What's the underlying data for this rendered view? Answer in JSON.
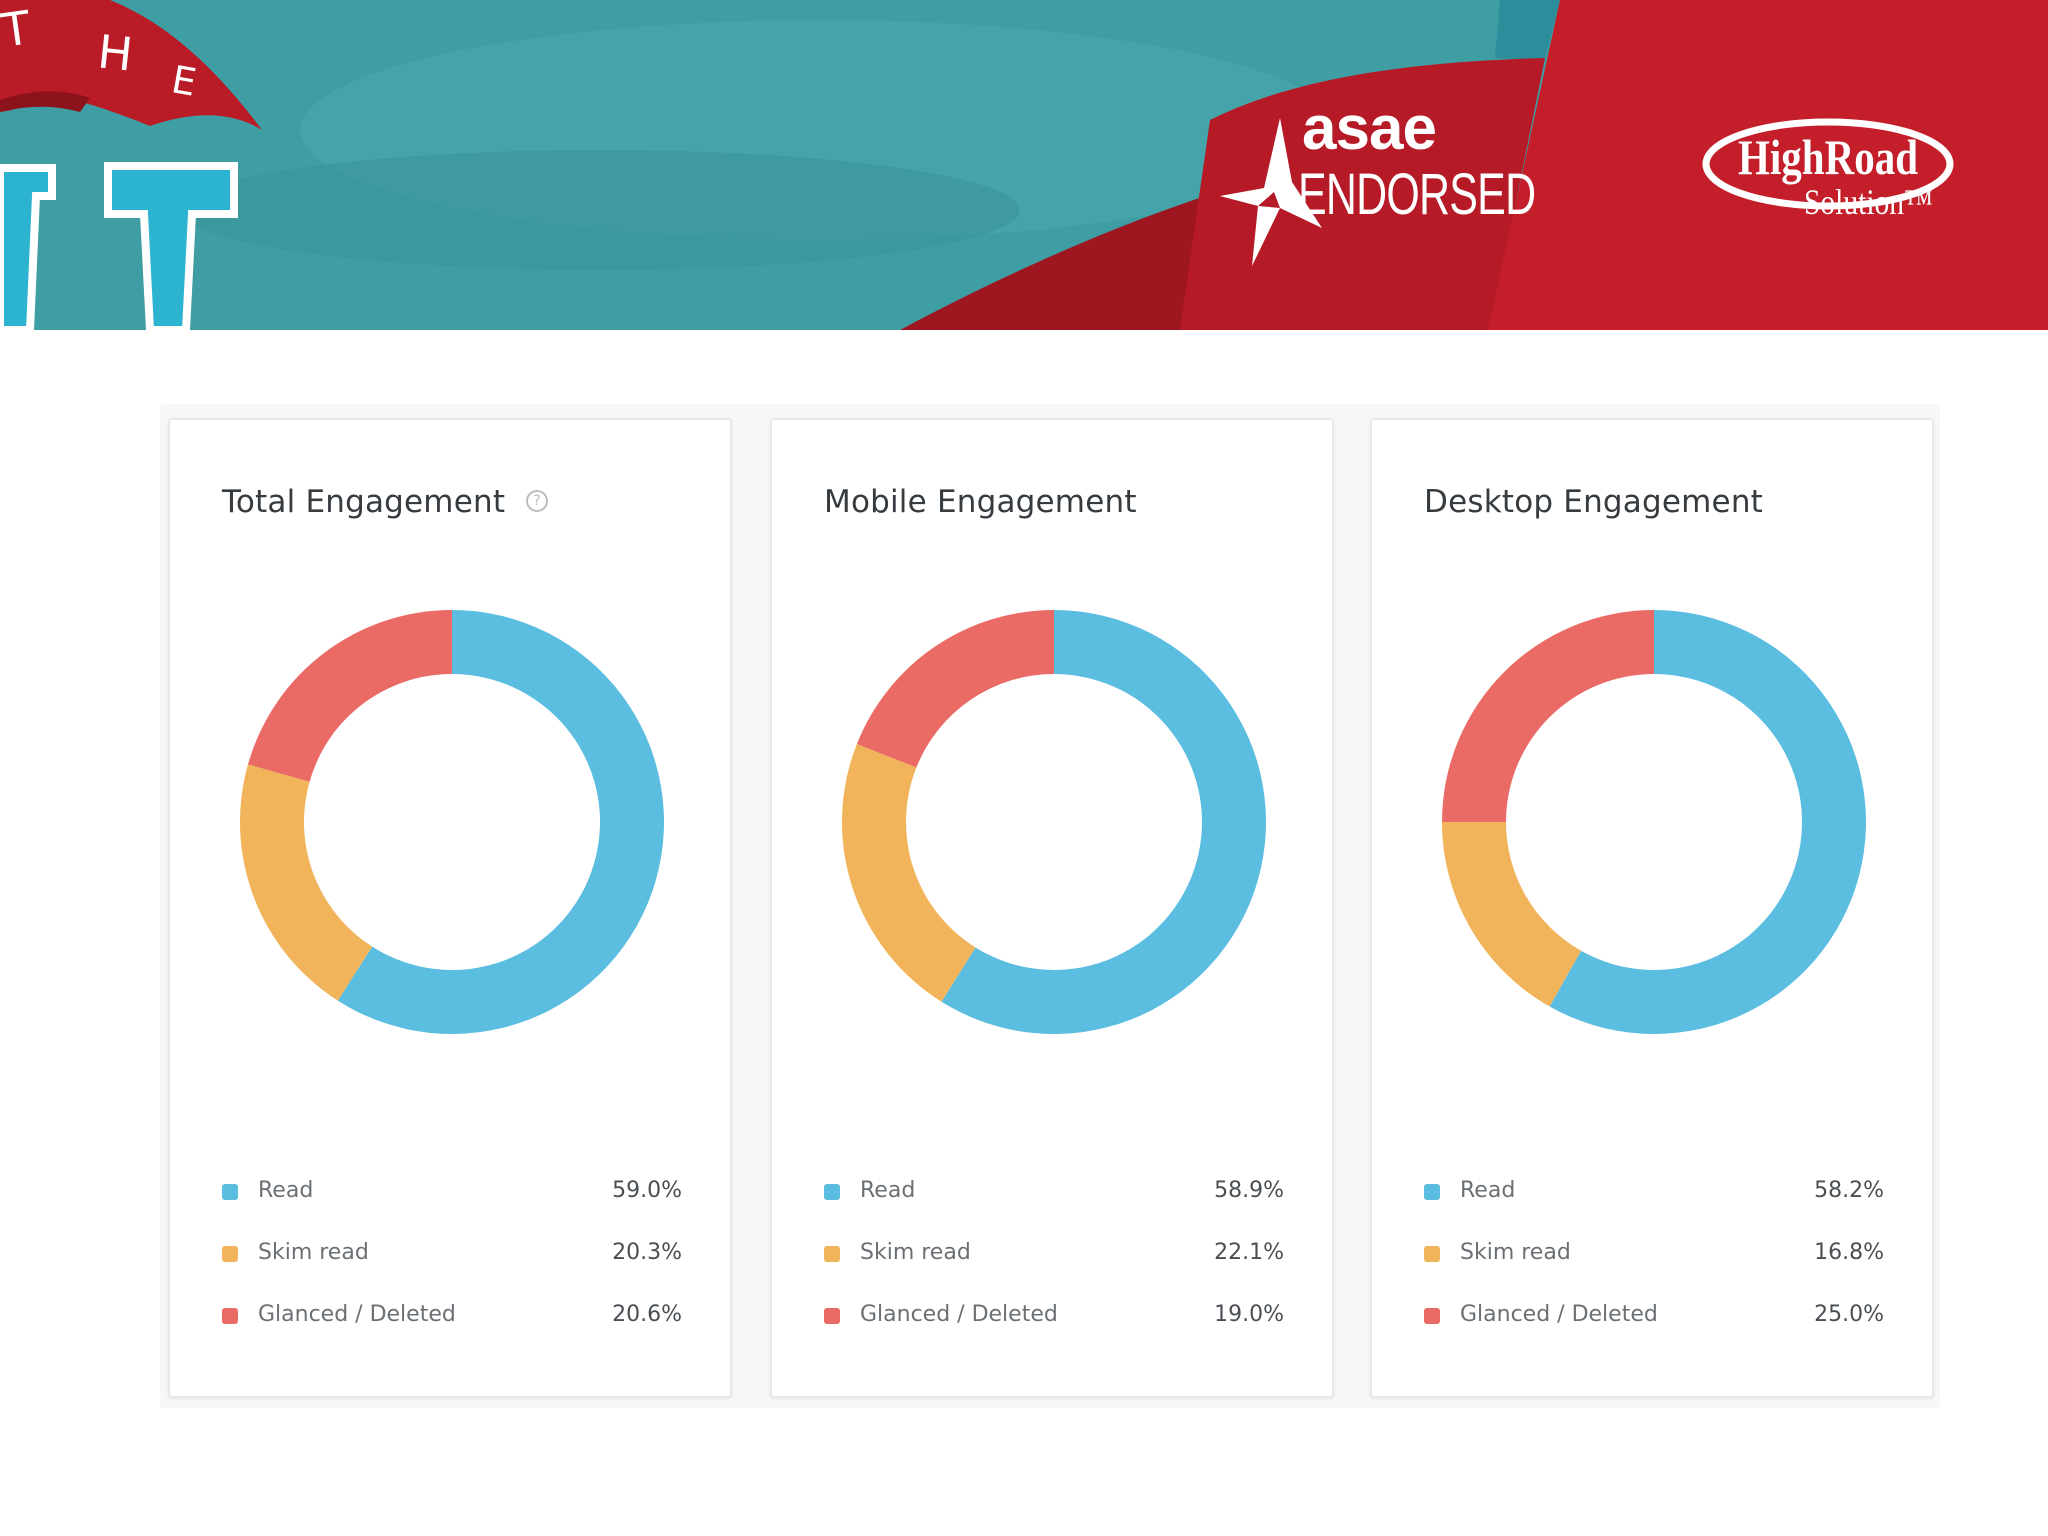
{
  "banner": {
    "flag_letters": [
      "T",
      "H",
      "E"
    ],
    "asae_word": "asae",
    "asae_endorsed": "ENDORSED",
    "highroad_name": "HighRoad",
    "highroad_sub": "Solution™"
  },
  "colors": {
    "read": "#5bbde0",
    "skim_read": "#f1b45a",
    "glanced_deleted": "#ea6b66",
    "banner_teal": "#3e9ea3",
    "banner_red": "#c41e2a"
  },
  "chart_data": [
    {
      "type": "pie",
      "donut": true,
      "title": "Total Engagement",
      "categories": [
        "Read",
        "Skim read",
        "Glanced / Deleted"
      ],
      "values": [
        59.0,
        20.3,
        20.6
      ],
      "value_labels": [
        "59.0%",
        "20.3%",
        "20.6%"
      ],
      "legend": "bottom"
    },
    {
      "type": "pie",
      "donut": true,
      "title": "Mobile Engagement",
      "categories": [
        "Read",
        "Skim read",
        "Glanced / Deleted"
      ],
      "values": [
        58.9,
        22.1,
        19.0
      ],
      "value_labels": [
        "58.9%",
        "22.1%",
        "19.0%"
      ],
      "legend": "bottom"
    },
    {
      "type": "pie",
      "donut": true,
      "title": "Desktop Engagement",
      "categories": [
        "Read",
        "Skim read",
        "Glanced / Deleted"
      ],
      "values": [
        58.2,
        16.8,
        25.0
      ],
      "value_labels": [
        "58.2%",
        "16.8%",
        "25.0%"
      ],
      "legend": "bottom"
    }
  ]
}
